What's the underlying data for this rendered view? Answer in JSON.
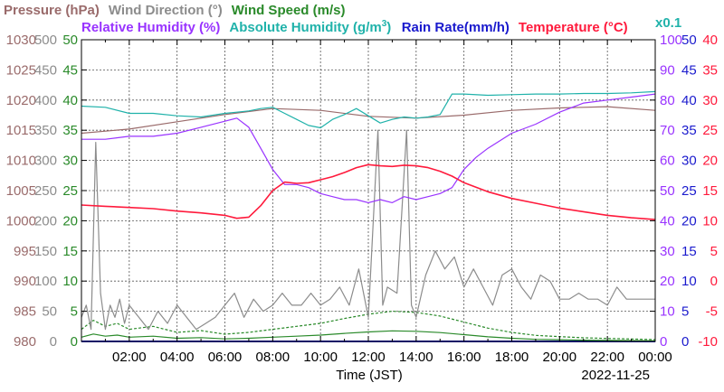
{
  "chart_data": {
    "type": "line",
    "date_label": "2022-11-25",
    "xlabel": "Time (JST)",
    "x_ticks": [
      "02:00",
      "04:00",
      "06:00",
      "08:00",
      "10:00",
      "12:00",
      "14:00",
      "16:00",
      "18:00",
      "20:00",
      "22:00",
      "00:00"
    ],
    "xlim_hours": [
      0,
      24
    ],
    "grid": true,
    "legend": [
      {
        "name": "Pressure (hPa)",
        "color": "#9a6b6b"
      },
      {
        "name": "Wind Direction (°)",
        "color": "#8c8c8c"
      },
      {
        "name": "Wind Speed (m/s)",
        "color": "#2a8a2a"
      },
      {
        "name": "Relative Humidity (%)",
        "color": "#9933ff"
      },
      {
        "name": "Absolute Humidity (g/m",
        "sup": "3",
        "tail": ")",
        "color": "#20b2aa"
      },
      {
        "name": "Rain Rate(mm/h)",
        "color": "#1a1acd"
      },
      {
        "name": "Temperature (°C)",
        "color": "#ff1a3c"
      },
      {
        "name": "x0.1",
        "color": "#20b2aa"
      }
    ],
    "axes": {
      "pressure": {
        "label_color": "#9a6b6b",
        "ticks": [
          "980",
          "985",
          "990",
          "995",
          "1000",
          "1005",
          "1010",
          "1015",
          "1020",
          "1025",
          "1030"
        ],
        "range": [
          980,
          1030
        ]
      },
      "wind_direction": {
        "label_color": "#8c8c8c",
        "ticks": [
          "0",
          "50",
          "100",
          "150",
          "200",
          "250",
          "300",
          "350",
          "400",
          "450",
          "500"
        ],
        "range": [
          0,
          500
        ]
      },
      "wind_speed": {
        "label_color": "#2a8a2a",
        "ticks": [
          "0",
          "5",
          "10",
          "15",
          "20",
          "25",
          "30",
          "35",
          "40",
          "45",
          "50"
        ],
        "range": [
          0,
          50
        ]
      },
      "humidity": {
        "label_color": "#9933ff",
        "ticks": [
          "0",
          "10",
          "20",
          "30",
          "40",
          "50",
          "60",
          "70",
          "80",
          "90",
          "100"
        ],
        "range": [
          0,
          100
        ]
      },
      "rain_rate": {
        "label_color": "#1a1acd",
        "ticks": [
          "0",
          "5",
          "10",
          "15",
          "20",
          "25",
          "30",
          "35",
          "40",
          "45",
          "50"
        ],
        "range": [
          0,
          50
        ]
      },
      "temperature": {
        "label_color": "#ff1a3c",
        "ticks": [
          "-10",
          "-5",
          "0",
          "5",
          "10",
          "15",
          "20",
          "25",
          "30",
          "35",
          "40"
        ],
        "range": [
          -10,
          40
        ]
      }
    },
    "series": [
      {
        "name": "Temperature (°C)",
        "color": "#ff1a3c",
        "axis": "temperature",
        "x": [
          0,
          1,
          2,
          3,
          4,
          5,
          6,
          6.5,
          7,
          7.5,
          8,
          8.5,
          9,
          9.5,
          10,
          10.5,
          11,
          11.5,
          12,
          12.5,
          13,
          13.5,
          14,
          14.5,
          15,
          15.5,
          16,
          17,
          18,
          19,
          20,
          21,
          22,
          23,
          24
        ],
        "y": [
          12.6,
          12.4,
          12.2,
          12.0,
          11.6,
          11.3,
          10.9,
          10.4,
          10.6,
          12.5,
          15.0,
          16.4,
          16.2,
          16.3,
          16.8,
          17.3,
          18.0,
          18.8,
          19.3,
          19.1,
          19.0,
          19.2,
          19.1,
          18.8,
          18.2,
          17.4,
          16.3,
          14.8,
          13.7,
          12.9,
          12.1,
          11.5,
          10.9,
          10.5,
          10.2
        ]
      },
      {
        "name": "Relative Humidity (%)",
        "color": "#9933ff",
        "axis": "humidity",
        "x": [
          0,
          1,
          2,
          3,
          4,
          5,
          6,
          6.5,
          7,
          7.5,
          8,
          8.5,
          9,
          9.5,
          10,
          10.5,
          11,
          11.5,
          12,
          12.5,
          13,
          13.5,
          14,
          14.5,
          15,
          15.5,
          16,
          16.5,
          17,
          18,
          19,
          20,
          21,
          22,
          23,
          24
        ],
        "y": [
          67,
          67,
          68,
          68,
          69,
          71,
          73,
          74,
          71,
          64,
          57,
          52,
          52,
          51,
          49,
          48,
          47,
          47,
          46,
          47,
          46,
          48,
          47,
          48,
          49,
          51,
          57,
          61,
          64,
          69,
          72,
          76,
          79,
          80,
          81,
          82
        ]
      },
      {
        "name": "Absolute Humidity (g/m3)",
        "color": "#20b2aa",
        "axis": "wind_speed",
        "x": [
          0,
          1,
          2,
          3,
          4,
          5,
          6,
          6.5,
          7,
          7.5,
          8,
          8.5,
          9,
          9.5,
          10,
          10.5,
          11,
          11.5,
          12,
          12.5,
          13,
          13.5,
          14,
          14.5,
          15,
          15.5,
          16,
          17,
          18,
          19,
          20,
          21,
          22,
          23,
          24
        ],
        "y": [
          39.0,
          38.8,
          37.8,
          37.8,
          37.4,
          37.2,
          37.8,
          38.0,
          38.2,
          38.6,
          38.8,
          37.8,
          36.8,
          35.8,
          35.4,
          36.8,
          37.6,
          38.6,
          37.4,
          36.2,
          36.8,
          37.2,
          37.0,
          37.2,
          37.6,
          41.0,
          41.0,
          40.8,
          40.9,
          41.0,
          41.0,
          41.1,
          41.1,
          41.2,
          41.4
        ]
      },
      {
        "name": "Pressure (hPa)",
        "color": "#9a6b6b",
        "axis": "pressure",
        "x": [
          0,
          2,
          4,
          6,
          8,
          10,
          12,
          14,
          16,
          18,
          20,
          22,
          24
        ],
        "y": [
          1014.5,
          1015.2,
          1016.4,
          1017.6,
          1018.6,
          1018.3,
          1017.3,
          1017.0,
          1017.5,
          1018.3,
          1018.7,
          1018.9,
          1018.3
        ]
      },
      {
        "name": "Wind Direction (°)",
        "color": "#8c8c8c",
        "axis": "wind_direction",
        "x": [
          0,
          0.2,
          0.4,
          0.6,
          0.8,
          1.0,
          1.2,
          1.4,
          1.6,
          1.8,
          2.0,
          2.4,
          2.8,
          3.2,
          3.6,
          4.0,
          4.4,
          4.8,
          5.2,
          5.6,
          6.0,
          6.4,
          6.8,
          7.2,
          7.6,
          8.0,
          8.4,
          8.8,
          9.2,
          9.6,
          10.0,
          10.4,
          10.8,
          11.2,
          11.6,
          12.0,
          12.4,
          12.6,
          12.8,
          13.2,
          13.6,
          13.8,
          14.0,
          14.4,
          14.8,
          15.2,
          15.6,
          16.0,
          16.4,
          16.8,
          17.2,
          17.6,
          18.0,
          18.4,
          18.8,
          19.2,
          19.6,
          20.0,
          20.4,
          20.8,
          21.2,
          21.6,
          22.0,
          22.4,
          22.8,
          23.2,
          23.6,
          24.0
        ],
        "y": [
          40,
          60,
          20,
          330,
          80,
          20,
          60,
          40,
          70,
          30,
          60,
          40,
          20,
          50,
          30,
          60,
          40,
          20,
          30,
          40,
          60,
          80,
          40,
          70,
          50,
          60,
          80,
          60,
          60,
          80,
          60,
          70,
          90,
          60,
          120,
          40,
          350,
          60,
          90,
          80,
          350,
          60,
          40,
          110,
          150,
          120,
          140,
          90,
          120,
          90,
          60,
          110,
          120,
          90,
          70,
          110,
          100,
          70,
          70,
          80,
          70,
          70,
          60,
          90,
          70,
          70,
          70,
          70
        ]
      },
      {
        "name": "Wind Speed (m/s)",
        "color": "#2a8a2a",
        "axis": "wind_speed",
        "x": [
          0,
          0.5,
          1,
          1.5,
          2,
          3,
          4,
          5,
          6,
          7,
          8,
          9,
          10,
          11,
          12,
          13,
          14,
          15,
          16,
          17,
          18,
          19,
          20,
          21,
          22,
          23,
          24
        ],
        "y": [
          2.0,
          3.5,
          2.5,
          3.0,
          2.0,
          2.5,
          1.5,
          1.8,
          1.2,
          1.5,
          2.0,
          2.5,
          3.0,
          3.8,
          4.5,
          5.0,
          4.8,
          4.2,
          3.2,
          2.2,
          1.5,
          1.0,
          0.8,
          0.6,
          0.5,
          0.4,
          0.3
        ]
      },
      {
        "name": "Rain Rate(mm/h)",
        "color": "#1a1acd",
        "axis": "rain_rate",
        "x": [
          0,
          24
        ],
        "y": [
          0,
          0
        ]
      }
    ]
  }
}
